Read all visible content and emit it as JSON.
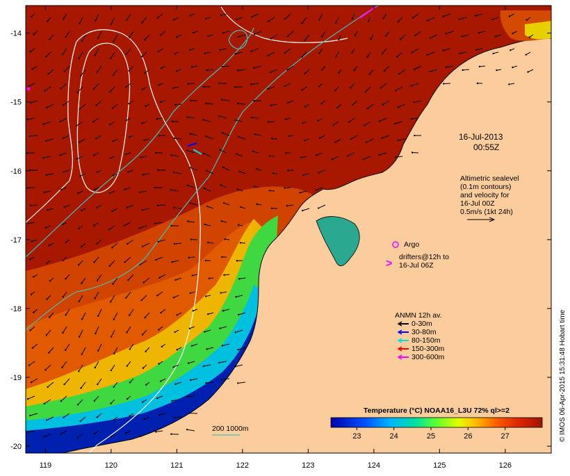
{
  "map": {
    "lon_range": [
      118.7,
      126.7
    ],
    "lat_range": [
      -20.1,
      -13.6
    ],
    "x_ticks": [
      {
        "value": 119,
        "label": "119"
      },
      {
        "value": 120,
        "label": "120"
      },
      {
        "value": 121,
        "label": "121"
      },
      {
        "value": 122,
        "label": "122"
      },
      {
        "value": 123,
        "label": "123"
      },
      {
        "value": 124,
        "label": "124"
      },
      {
        "value": 125,
        "label": "125"
      },
      {
        "value": 126,
        "label": "126"
      }
    ],
    "y_ticks": [
      {
        "value": -14,
        "label": "-14"
      },
      {
        "value": -15,
        "label": "-15"
      },
      {
        "value": -16,
        "label": "-16"
      },
      {
        "value": -17,
        "label": "-17"
      },
      {
        "value": -18,
        "label": "-18"
      },
      {
        "value": -19,
        "label": "-19"
      },
      {
        "value": -20,
        "label": "-20"
      }
    ]
  },
  "timestamp": {
    "date": "16-Jul-2013",
    "time": "00:55Z"
  },
  "altimetry": {
    "lines": [
      "Altimetric sealevel",
      "(0.1m contours)",
      "and velocity for",
      "16-Jul 00Z",
      "0.5m/s (1kt 24h)"
    ]
  },
  "argo": {
    "label": "Argo"
  },
  "drifters": {
    "lines": [
      "drifters@12h to",
      "16-Jul 06Z"
    ],
    "symbol": ">"
  },
  "anmn": {
    "title": "ANMN 12h av.",
    "items": [
      {
        "label": "0-30m",
        "color": "#000000"
      },
      {
        "label": "30-80m",
        "color": "#0000ff"
      },
      {
        "label": "80-150m",
        "color": "#00e0e0"
      },
      {
        "label": "150-300m",
        "color": "#ff0000"
      },
      {
        "label": "300-600m",
        "color": "#ff00ff"
      }
    ]
  },
  "depth_legend": {
    "label": "200  1000m"
  },
  "colorbar": {
    "title": "Temperature (°C) NOAA16_L3U 72% ql>=2",
    "ticks": [
      "23",
      "24",
      "25",
      "26",
      "27"
    ],
    "range": [
      22.3,
      28.0
    ]
  },
  "credit": "© IMOS 06-Apr-2015 15:31:48 Hobart time",
  "colors": {
    "warm_sea": "#a81800",
    "land": "#fbcc9c",
    "contour_200": "#40c0c0",
    "contour_1000": "#ffffff"
  }
}
